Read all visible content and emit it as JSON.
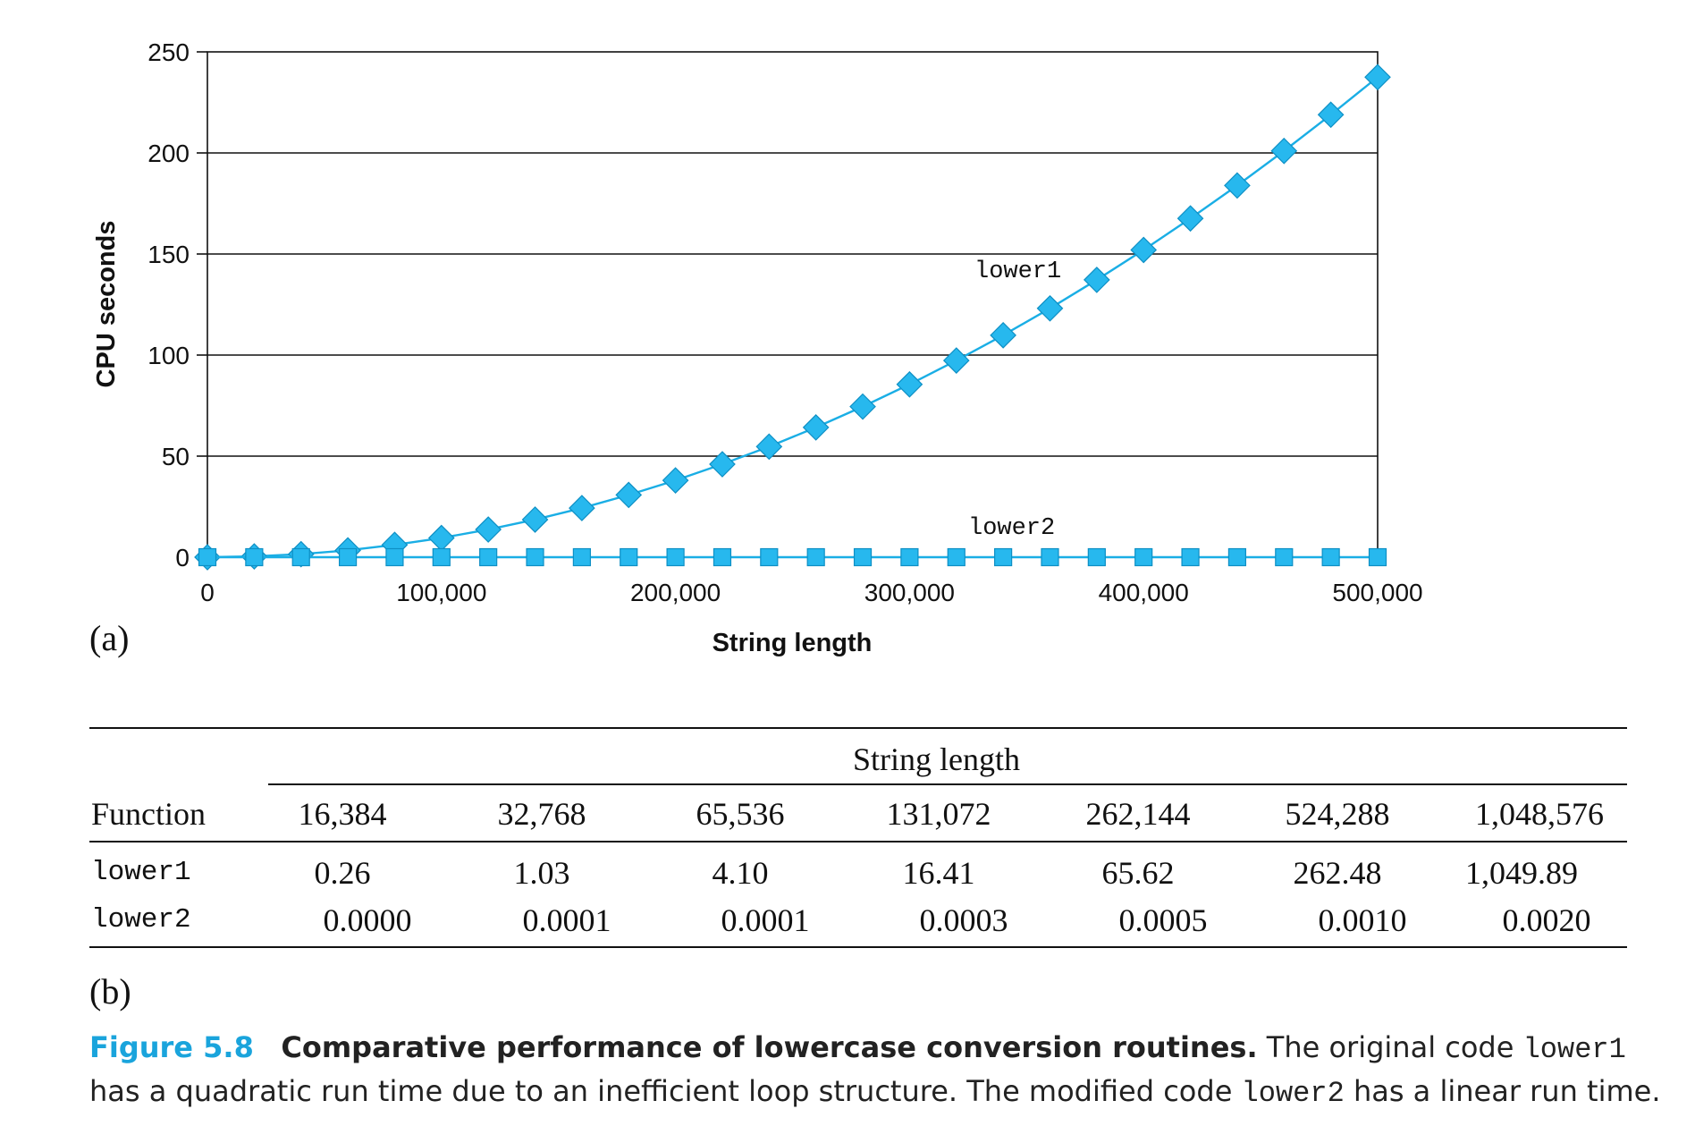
{
  "chart_data": {
    "type": "line",
    "title": "",
    "xlabel": "String length",
    "ylabel": "CPU seconds",
    "xlim": [
      0,
      500000
    ],
    "ylim": [
      0,
      250
    ],
    "xticks": [
      0,
      100000,
      200000,
      300000,
      400000,
      500000
    ],
    "xtick_labels": [
      "0",
      "100,000",
      "200,000",
      "300,000",
      "400,000",
      "500,000"
    ],
    "yticks": [
      0,
      50,
      100,
      150,
      200,
      250
    ],
    "ytick_labels": [
      "0",
      "50",
      "100",
      "150",
      "200",
      "250"
    ],
    "grid": "horizontal",
    "legend": "inline labels",
    "color": "#1aaee5",
    "series": [
      {
        "name": "lower1",
        "marker": "diamond",
        "x": [
          0,
          20000,
          40000,
          60000,
          80000,
          100000,
          120000,
          140000,
          160000,
          180000,
          200000,
          220000,
          240000,
          260000,
          280000,
          300000,
          320000,
          340000,
          360000,
          380000,
          400000,
          420000,
          440000,
          460000,
          480000,
          500000
        ],
        "y": [
          0,
          0.4,
          1.5,
          3.4,
          6.1,
          9.5,
          13.7,
          18.6,
          24.3,
          30.8,
          38.0,
          46.0,
          54.7,
          64.2,
          74.5,
          85.5,
          97.3,
          109.8,
          123.1,
          137.2,
          152.0,
          167.6,
          183.9,
          201.0,
          218.9,
          237.5
        ]
      },
      {
        "name": "lower2",
        "marker": "square",
        "x": [
          0,
          20000,
          40000,
          60000,
          80000,
          100000,
          120000,
          140000,
          160000,
          180000,
          200000,
          220000,
          240000,
          260000,
          280000,
          300000,
          320000,
          340000,
          360000,
          380000,
          400000,
          420000,
          440000,
          460000,
          480000,
          500000
        ],
        "y": [
          0,
          0,
          0,
          0,
          0,
          0,
          0,
          0,
          0,
          0,
          0,
          0,
          0,
          0,
          0,
          0,
          0,
          0,
          0,
          0,
          0,
          0,
          0,
          0,
          0,
          0
        ]
      }
    ]
  },
  "panel_a_label": "(a)",
  "panel_b_label": "(b)",
  "table": {
    "group_header": "String length",
    "row_header": "Function",
    "columns": [
      "16,384",
      "32,768",
      "65,536",
      "131,072",
      "262,144",
      "524,288",
      "1,048,576"
    ],
    "rows": [
      {
        "function": "lower1",
        "values": [
          "0.26",
          "1.03",
          "4.10",
          "16.41",
          "65.62",
          "262.48",
          "1,049.89"
        ]
      },
      {
        "function": "lower2",
        "values": [
          "0.0000",
          "0.0001",
          "0.0001",
          "0.0003",
          "0.0005",
          "0.0010",
          "0.0020"
        ]
      }
    ]
  },
  "caption": {
    "figure_number": "Figure 5.8",
    "title": "Comparative performance of lowercase conversion routines.",
    "text_1": " The original code ",
    "code_1": "lower1",
    "text_2": " has a quadratic run time due to an inefficient loop structure. The modified code ",
    "code_2": "lower2",
    "text_3": " has a linear run time."
  }
}
